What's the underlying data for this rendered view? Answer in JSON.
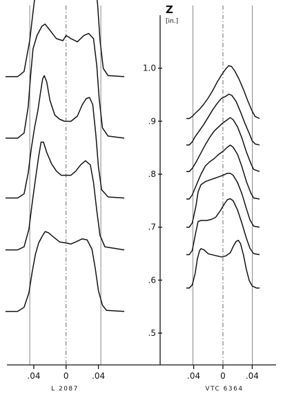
{
  "chart_data": [
    {
      "type": "line",
      "caption": "L 2087",
      "xunit": "in.",
      "x_ticks": [
        -0.04,
        0,
        0.04
      ],
      "x_tick_labels": [
        ".04",
        "0",
        ".04"
      ],
      "xlim": [
        -0.075,
        0.072
      ],
      "guides": [
        -0.045,
        0,
        0.043
      ],
      "series": [
        {
          "baseline_z": 0.984,
          "profile": [
            [
              -0.075,
              0
            ],
            [
              -0.06,
              0
            ],
            [
              -0.052,
              0.05
            ],
            [
              -0.045,
              0.35
            ],
            [
              -0.041,
              0.62
            ],
            [
              -0.038,
              0.81
            ],
            [
              -0.034,
              0.92
            ],
            [
              -0.028,
              0.95
            ],
            [
              -0.018,
              0.94
            ],
            [
              -0.008,
              0.93
            ],
            [
              0,
              0.94
            ],
            [
              0.008,
              0.95
            ],
            [
              0.016,
              0.93
            ],
            [
              0.024,
              0.92
            ],
            [
              0.031,
              0.9
            ],
            [
              0.036,
              0.88
            ],
            [
              0.039,
              0.7
            ],
            [
              0.042,
              0.35
            ],
            [
              0.046,
              0.08
            ],
            [
              0.052,
              0.01
            ],
            [
              0.072,
              0
            ]
          ]
        },
        {
          "baseline_z": 0.868,
          "profile": [
            [
              -0.075,
              0
            ],
            [
              -0.06,
              0
            ],
            [
              -0.052,
              0.05
            ],
            [
              -0.047,
              0.3
            ],
            [
              -0.044,
              0.6
            ],
            [
              -0.041,
              0.86
            ],
            [
              -0.036,
              0.99
            ],
            [
              -0.03,
              1.08
            ],
            [
              -0.026,
              1.1
            ],
            [
              -0.02,
              1.04
            ],
            [
              -0.012,
              0.96
            ],
            [
              -0.004,
              0.94
            ],
            [
              0,
              0.99
            ],
            [
              0.006,
              0.96
            ],
            [
              0.014,
              0.93
            ],
            [
              0.022,
              0.99
            ],
            [
              0.028,
              1.01
            ],
            [
              0.034,
              0.96
            ],
            [
              0.038,
              0.7
            ],
            [
              0.041,
              0.38
            ],
            [
              0.045,
              0.1
            ],
            [
              0.052,
              0.02
            ],
            [
              0.072,
              0
            ]
          ]
        },
        {
          "baseline_z": 0.755,
          "profile": [
            [
              -0.075,
              0
            ],
            [
              -0.06,
              0
            ],
            [
              -0.052,
              0.04
            ],
            [
              -0.047,
              0.24
            ],
            [
              -0.043,
              0.48
            ],
            [
              -0.039,
              0.68
            ],
            [
              -0.035,
              0.84
            ],
            [
              -0.032,
              1.0
            ],
            [
              -0.029,
              1.15
            ],
            [
              -0.027,
              1.18
            ],
            [
              -0.024,
              1.12
            ],
            [
              -0.02,
              0.94
            ],
            [
              -0.014,
              0.8
            ],
            [
              -0.008,
              0.76
            ],
            [
              -0.002,
              0.74
            ],
            [
              0.006,
              0.74
            ],
            [
              0.014,
              0.79
            ],
            [
              0.02,
              0.9
            ],
            [
              0.025,
              0.96
            ],
            [
              0.029,
              0.97
            ],
            [
              0.033,
              0.9
            ],
            [
              0.037,
              0.6
            ],
            [
              0.04,
              0.3
            ],
            [
              0.044,
              0.08
            ],
            [
              0.052,
              0.01
            ],
            [
              0.072,
              0
            ]
          ]
        },
        {
          "baseline_z": 0.657,
          "profile": [
            [
              -0.075,
              0
            ],
            [
              -0.06,
              0
            ],
            [
              -0.052,
              0.03
            ],
            [
              -0.046,
              0.2
            ],
            [
              -0.042,
              0.45
            ],
            [
              -0.038,
              0.68
            ],
            [
              -0.034,
              0.9
            ],
            [
              -0.031,
              1.04
            ],
            [
              -0.028,
              1.04
            ],
            [
              -0.024,
              0.94
            ],
            [
              -0.018,
              0.83
            ],
            [
              -0.012,
              0.76
            ],
            [
              -0.006,
              0.72
            ],
            [
              0,
              0.72
            ],
            [
              0.006,
              0.72
            ],
            [
              0.012,
              0.76
            ],
            [
              0.018,
              0.82
            ],
            [
              0.024,
              0.86
            ],
            [
              0.03,
              0.82
            ],
            [
              0.034,
              0.65
            ],
            [
              0.038,
              0.38
            ],
            [
              0.042,
              0.14
            ],
            [
              0.048,
              0.03
            ],
            [
              0.072,
              0
            ]
          ]
        },
        {
          "baseline_z": 0.541,
          "profile": [
            [
              -0.075,
              0
            ],
            [
              -0.06,
              0
            ],
            [
              -0.052,
              0.04
            ],
            [
              -0.046,
              0.18
            ],
            [
              -0.042,
              0.38
            ],
            [
              -0.038,
              0.55
            ],
            [
              -0.034,
              0.66
            ],
            [
              -0.03,
              0.72
            ],
            [
              -0.026,
              0.77
            ],
            [
              -0.022,
              0.76
            ],
            [
              -0.016,
              0.72
            ],
            [
              -0.008,
              0.67
            ],
            [
              0,
              0.66
            ],
            [
              0.006,
              0.65
            ],
            [
              0.012,
              0.67
            ],
            [
              0.02,
              0.7
            ],
            [
              0.026,
              0.69
            ],
            [
              0.032,
              0.6
            ],
            [
              0.036,
              0.42
            ],
            [
              0.04,
              0.2
            ],
            [
              0.045,
              0.06
            ],
            [
              0.05,
              0.01
            ],
            [
              0.072,
              0
            ]
          ]
        }
      ]
    },
    {
      "type": "line",
      "caption": "VTC 6364",
      "ylabel": "Z",
      "yunit": "[in.]",
      "y_ticks": [
        0.5,
        0.6,
        0.7,
        0.8,
        0.9,
        1.0
      ],
      "y_tick_labels": [
        ".5",
        ".6",
        ".7",
        ".8",
        ".9",
        "1.0"
      ],
      "ylim": [
        0.44,
        1.1
      ],
      "xunit": "in.",
      "x_ticks": [
        -0.04,
        0,
        0.04
      ],
      "x_tick_labels": [
        ".04",
        "0",
        ".04"
      ],
      "xlim": [
        -0.05,
        0.05
      ],
      "guides": [
        -0.041,
        0,
        0.04
      ],
      "series": [
        {
          "baseline_z": 0.905,
          "profile": [
            [
              -0.05,
              0
            ],
            [
              -0.046,
              0
            ],
            [
              -0.042,
              0.02
            ],
            [
              -0.038,
              0.05
            ],
            [
              -0.032,
              0.09
            ],
            [
              -0.026,
              0.14
            ],
            [
              -0.02,
              0.2
            ],
            [
              -0.014,
              0.27
            ],
            [
              -0.008,
              0.35
            ],
            [
              -0.002,
              0.42
            ],
            [
              0.004,
              0.48
            ],
            [
              0.008,
              0.51
            ],
            [
              0.012,
              0.5
            ],
            [
              0.016,
              0.46
            ],
            [
              0.022,
              0.38
            ],
            [
              0.028,
              0.28
            ],
            [
              0.034,
              0.17
            ],
            [
              0.04,
              0.07
            ],
            [
              0.044,
              0.02
            ],
            [
              0.05,
              0
            ]
          ]
        },
        {
          "baseline_z": 0.855,
          "profile": [
            [
              -0.05,
              0
            ],
            [
              -0.046,
              0
            ],
            [
              -0.042,
              0.03
            ],
            [
              -0.038,
              0.08
            ],
            [
              -0.032,
              0.14
            ],
            [
              -0.026,
              0.2
            ],
            [
              -0.02,
              0.27
            ],
            [
              -0.014,
              0.34
            ],
            [
              -0.008,
              0.4
            ],
            [
              -0.002,
              0.45
            ],
            [
              0.004,
              0.47
            ],
            [
              0.008,
              0.49
            ],
            [
              0.012,
              0.48
            ],
            [
              0.018,
              0.42
            ],
            [
              0.024,
              0.32
            ],
            [
              0.03,
              0.21
            ],
            [
              0.036,
              0.11
            ],
            [
              0.04,
              0.04
            ],
            [
              0.044,
              0.01
            ],
            [
              0.05,
              0
            ]
          ]
        },
        {
          "baseline_z": 0.805,
          "profile": [
            [
              -0.05,
              0
            ],
            [
              -0.046,
              0
            ],
            [
              -0.042,
              0.03
            ],
            [
              -0.036,
              0.1
            ],
            [
              -0.03,
              0.18
            ],
            [
              -0.024,
              0.26
            ],
            [
              -0.018,
              0.33
            ],
            [
              -0.012,
              0.39
            ],
            [
              -0.006,
              0.43
            ],
            [
              0,
              0.47
            ],
            [
              0.006,
              0.5
            ],
            [
              0.01,
              0.52
            ],
            [
              0.014,
              0.5
            ],
            [
              0.02,
              0.43
            ],
            [
              0.026,
              0.32
            ],
            [
              0.032,
              0.19
            ],
            [
              0.038,
              0.08
            ],
            [
              0.042,
              0.02
            ],
            [
              0.05,
              0
            ]
          ]
        },
        {
          "baseline_z": 0.753,
          "profile": [
            [
              -0.05,
              0
            ],
            [
              -0.046,
              0
            ],
            [
              -0.042,
              0.04
            ],
            [
              -0.036,
              0.14
            ],
            [
              -0.03,
              0.24
            ],
            [
              -0.024,
              0.32
            ],
            [
              -0.018,
              0.36
            ],
            [
              -0.012,
              0.39
            ],
            [
              -0.006,
              0.43
            ],
            [
              0,
              0.46
            ],
            [
              0.006,
              0.5
            ],
            [
              0.01,
              0.52
            ],
            [
              0.014,
              0.5
            ],
            [
              0.02,
              0.43
            ],
            [
              0.026,
              0.31
            ],
            [
              0.032,
              0.17
            ],
            [
              0.038,
              0.06
            ],
            [
              0.042,
              0.01
            ],
            [
              0.05,
              0
            ]
          ]
        },
        {
          "baseline_z": 0.7,
          "profile": [
            [
              -0.05,
              0
            ],
            [
              -0.046,
              0
            ],
            [
              -0.042,
              0.04
            ],
            [
              -0.037,
              0.2
            ],
            [
              -0.034,
              0.34
            ],
            [
              -0.03,
              0.41
            ],
            [
              -0.024,
              0.44
            ],
            [
              -0.016,
              0.46
            ],
            [
              -0.008,
              0.48
            ],
            [
              0,
              0.5
            ],
            [
              0.006,
              0.52
            ],
            [
              0.01,
              0.52
            ],
            [
              0.014,
              0.5
            ],
            [
              0.02,
              0.43
            ],
            [
              0.026,
              0.32
            ],
            [
              0.032,
              0.18
            ],
            [
              0.037,
              0.07
            ],
            [
              0.042,
              0.01
            ],
            [
              0.05,
              0
            ]
          ]
        },
        {
          "baseline_z": 0.648,
          "profile": [
            [
              -0.05,
              0
            ],
            [
              -0.046,
              0
            ],
            [
              -0.042,
              0.04
            ],
            [
              -0.037,
              0.22
            ],
            [
              -0.034,
              0.32
            ],
            [
              -0.03,
              0.33
            ],
            [
              -0.022,
              0.33
            ],
            [
              -0.016,
              0.34
            ],
            [
              -0.01,
              0.36
            ],
            [
              -0.004,
              0.42
            ],
            [
              0.002,
              0.49
            ],
            [
              0.006,
              0.53
            ],
            [
              0.01,
              0.54
            ],
            [
              0.014,
              0.52
            ],
            [
              0.02,
              0.43
            ],
            [
              0.026,
              0.3
            ],
            [
              0.032,
              0.16
            ],
            [
              0.037,
              0.06
            ],
            [
              0.042,
              0.01
            ],
            [
              0.05,
              0
            ]
          ]
        },
        {
          "baseline_z": 0.585,
          "profile": [
            [
              -0.05,
              0
            ],
            [
              -0.046,
              0
            ],
            [
              -0.042,
              0.03
            ],
            [
              -0.038,
              0.14
            ],
            [
              -0.035,
              0.28
            ],
            [
              -0.032,
              0.36
            ],
            [
              -0.03,
              0.38
            ],
            [
              -0.026,
              0.37
            ],
            [
              -0.02,
              0.33
            ],
            [
              -0.014,
              0.32
            ],
            [
              -0.008,
              0.31
            ],
            [
              -0.002,
              0.3
            ],
            [
              0.004,
              0.31
            ],
            [
              0.01,
              0.34
            ],
            [
              0.014,
              0.4
            ],
            [
              0.018,
              0.45
            ],
            [
              0.021,
              0.46
            ],
            [
              0.024,
              0.43
            ],
            [
              0.028,
              0.32
            ],
            [
              0.032,
              0.18
            ],
            [
              0.036,
              0.07
            ],
            [
              0.04,
              0.02
            ],
            [
              0.046,
              0
            ],
            [
              0.05,
              0
            ]
          ]
        }
      ]
    }
  ]
}
